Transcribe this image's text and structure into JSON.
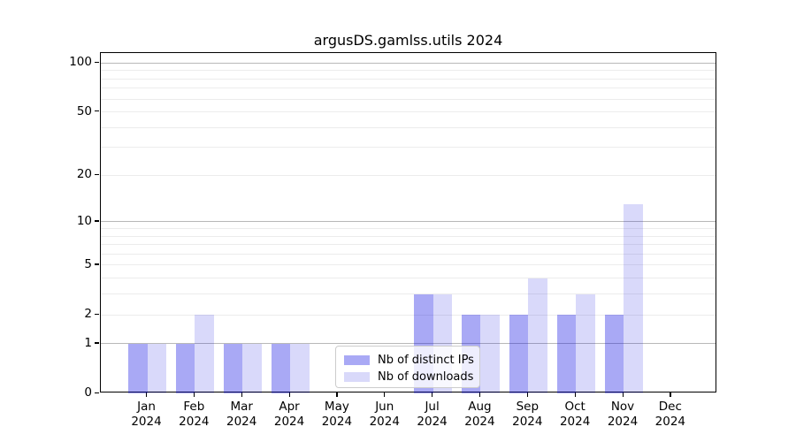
{
  "title": "argusDS.gamlss.utils 2024",
  "chart_data": {
    "type": "bar",
    "year_label": "2024",
    "categories": [
      "Jan",
      "Feb",
      "Mar",
      "Apr",
      "May",
      "Jun",
      "Jul",
      "Aug",
      "Sep",
      "Oct",
      "Nov",
      "Dec"
    ],
    "series": [
      {
        "name": "Nb of distinct IPs",
        "color": "#a9a9f4",
        "fill": "rgba(10,10,225,0.35)",
        "values": [
          1,
          1,
          1,
          1,
          0,
          0,
          3,
          2,
          2,
          2,
          2,
          0
        ]
      },
      {
        "name": "Nb of downloads",
        "color": "#d9d9f9",
        "fill": "rgba(10,10,225,0.155)",
        "values": [
          1,
          2,
          1,
          1,
          0,
          0,
          3,
          2,
          4,
          3,
          13,
          0
        ]
      }
    ],
    "yscale": "log1p",
    "yticks": [
      0,
      1,
      2,
      5,
      10,
      20,
      50,
      100
    ],
    "ylim": [
      0,
      100
    ],
    "grid": "horizontal",
    "legend_position": "lower center",
    "gridline_major_values": [
      1,
      10,
      100
    ],
    "gridline_minor_values": [
      2,
      3,
      4,
      5,
      6,
      7,
      8,
      9,
      20,
      30,
      40,
      50,
      60,
      70,
      80,
      90
    ]
  }
}
